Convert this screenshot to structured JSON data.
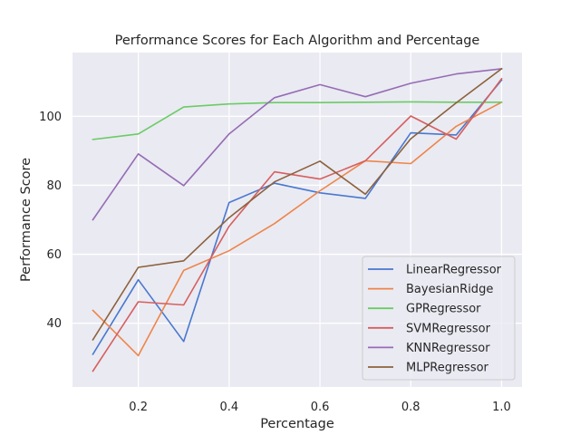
{
  "chart_data": {
    "type": "line",
    "title": "Performance Scores for Each Algorithm and Percentage",
    "xlabel": "Percentage",
    "ylabel": "Performance Score",
    "xlim": [
      0.055,
      1.045
    ],
    "ylim": [
      21.5,
      118.5
    ],
    "xticks": [
      0.2,
      0.4,
      0.6,
      0.8,
      1.0
    ],
    "xtick_labels": [
      "0.2",
      "0.4",
      "0.6",
      "0.8",
      "1.0"
    ],
    "yticks": [
      40,
      60,
      80,
      100
    ],
    "ytick_labels": [
      "40",
      "60",
      "80",
      "100"
    ],
    "grid": true,
    "legend_position": "lower-right",
    "x": [
      0.1,
      0.2,
      0.3,
      0.4,
      0.5,
      0.6,
      0.7,
      0.8,
      0.9,
      1.0
    ],
    "series": [
      {
        "name": "LinearRegressor",
        "color": "#4878d0",
        "values": [
          31.0,
          52.6,
          34.7,
          75.0,
          80.6,
          77.8,
          76.2,
          95.2,
          94.6,
          110.5
        ]
      },
      {
        "name": "BayesianRidge",
        "color": "#ee854a",
        "values": [
          43.7,
          30.6,
          55.3,
          61.0,
          68.9,
          78.4,
          87.1,
          86.3,
          97.1,
          104.1
        ]
      },
      {
        "name": "GPRegressor",
        "color": "#6acc64",
        "values": [
          93.3,
          94.9,
          102.7,
          103.6,
          104.0,
          104.0,
          104.1,
          104.2,
          104.1,
          104.1
        ]
      },
      {
        "name": "SVMRegressor",
        "color": "#d65f5f",
        "values": [
          26.1,
          46.2,
          45.3,
          68.1,
          83.9,
          81.8,
          87.1,
          100.1,
          93.4,
          110.9
        ]
      },
      {
        "name": "KNNRegressor",
        "color": "#956cb4",
        "values": [
          70.0,
          89.1,
          79.9,
          94.9,
          105.4,
          109.2,
          105.7,
          109.6,
          112.3,
          113.8
        ]
      },
      {
        "name": "MLPRegressor",
        "color": "#8c613c",
        "values": [
          35.2,
          56.2,
          58.1,
          70.6,
          81.0,
          87.0,
          77.4,
          93.5,
          103.9,
          113.8
        ]
      }
    ]
  }
}
